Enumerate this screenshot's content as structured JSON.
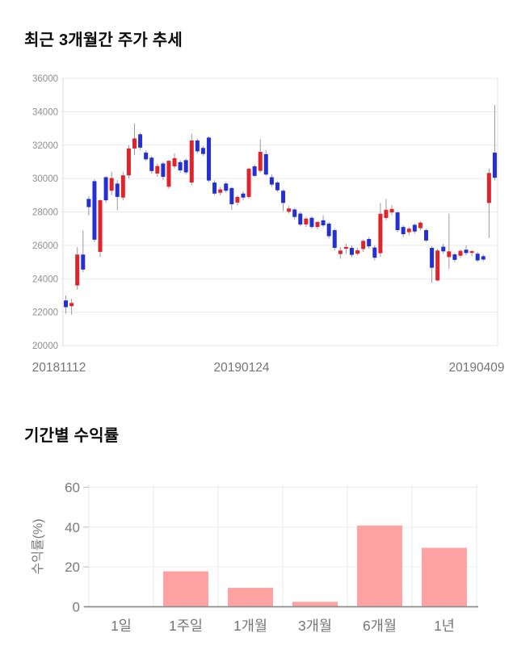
{
  "page": {
    "background": "#ffffff"
  },
  "chart_data": [
    {
      "type": "candlestick",
      "title": "최근 3개월간 주가 추세",
      "xlabel": "",
      "ylabel": "",
      "ylim": [
        20000,
        36000
      ],
      "y_ticks": [
        36000,
        34000,
        32000,
        30000,
        28000,
        26000,
        24000,
        22000,
        20000
      ],
      "x_axis_labels": [
        "20181112",
        "20190124",
        "20190409"
      ],
      "grid": "horizontal",
      "legend": "none",
      "colors": {
        "up": "#e1242b",
        "down": "#2530d2",
        "wick": "#999999",
        "grid": "#e9e9e9",
        "axis_text": "#8e8e8e",
        "x_text": "#757575"
      },
      "candles_ohlc": [
        [
          22700,
          23000,
          21900,
          22300
        ],
        [
          22360,
          22800,
          21850,
          22550
        ],
        [
          23600,
          25900,
          23350,
          25450
        ],
        [
          25450,
          26900,
          24400,
          24550
        ],
        [
          28780,
          28950,
          27800,
          28290
        ],
        [
          29840,
          29950,
          26200,
          26340
        ],
        [
          25610,
          28750,
          25300,
          28700
        ],
        [
          30080,
          30150,
          28550,
          28700
        ],
        [
          29270,
          30400,
          29000,
          30030
        ],
        [
          29700,
          29900,
          28100,
          28900
        ],
        [
          28860,
          30400,
          28700,
          30190
        ],
        [
          30190,
          32000,
          30000,
          31800
        ],
        [
          31800,
          33300,
          31400,
          32400
        ],
        [
          32650,
          32750,
          31700,
          31850
        ],
        [
          31550,
          31700,
          31050,
          31150
        ],
        [
          31250,
          31350,
          30300,
          30450
        ],
        [
          30300,
          30900,
          30100,
          30750
        ],
        [
          30900,
          31000,
          29900,
          30100
        ],
        [
          29510,
          31100,
          29400,
          31060
        ],
        [
          30730,
          31500,
          30600,
          31220
        ],
        [
          30980,
          31100,
          30350,
          30490
        ],
        [
          31100,
          31200,
          30250,
          30370
        ],
        [
          29760,
          32680,
          29600,
          32280
        ],
        [
          32280,
          32400,
          31500,
          31630
        ],
        [
          31830,
          31950,
          31350,
          31470
        ],
        [
          32450,
          32520,
          29800,
          29880
        ],
        [
          29760,
          29900,
          29000,
          29100
        ],
        [
          29150,
          29500,
          29000,
          29350
        ],
        [
          29700,
          29800,
          29150,
          29270
        ],
        [
          29430,
          29500,
          28130,
          28460
        ],
        [
          28560,
          29000,
          28400,
          28900
        ],
        [
          29100,
          29250,
          28700,
          28860
        ],
        [
          28900,
          30650,
          28800,
          30585
        ],
        [
          30730,
          30850,
          30100,
          30160
        ],
        [
          30460,
          32350,
          30350,
          31600
        ],
        [
          31460,
          31700,
          30150,
          30240
        ],
        [
          30080,
          30250,
          29500,
          29640
        ],
        [
          29760,
          29850,
          29200,
          29300
        ],
        [
          29270,
          29350,
          28050,
          28540
        ],
        [
          28010,
          28350,
          27900,
          28210
        ],
        [
          28150,
          28250,
          27550,
          27700
        ],
        [
          27900,
          28000,
          27150,
          27250
        ],
        [
          27250,
          27700,
          27100,
          27600
        ],
        [
          27650,
          27750,
          27000,
          27100
        ],
        [
          27100,
          27450,
          26950,
          27400
        ],
        [
          27500,
          27800,
          27100,
          27200
        ],
        [
          27300,
          27400,
          26400,
          26550
        ],
        [
          26910,
          27000,
          25700,
          25850
        ],
        [
          25480,
          25900,
          25200,
          25690
        ],
        [
          25800,
          26100,
          25500,
          25900
        ],
        [
          25850,
          26000,
          25300,
          25430
        ],
        [
          25500,
          25850,
          25400,
          25700
        ],
        [
          25780,
          26350,
          25600,
          26270
        ],
        [
          26380,
          26500,
          25800,
          25940
        ],
        [
          25870,
          26000,
          25100,
          25260
        ],
        [
          25530,
          28540,
          25300,
          27890
        ],
        [
          27640,
          28780,
          27500,
          28130
        ],
        [
          27970,
          28400,
          27800,
          28180
        ],
        [
          27970,
          28050,
          26800,
          26910
        ],
        [
          27100,
          27200,
          26500,
          26670
        ],
        [
          26790,
          27100,
          26600,
          27000
        ],
        [
          27230,
          27300,
          26700,
          26830
        ],
        [
          27030,
          27450,
          26900,
          27360
        ],
        [
          26910,
          27000,
          26200,
          26290
        ],
        [
          25850,
          25950,
          23740,
          24660
        ],
        [
          23900,
          25800,
          23850,
          25690
        ],
        [
          25920,
          26100,
          25500,
          25640
        ],
        [
          25300,
          27900,
          24600,
          25640
        ],
        [
          25460,
          25550,
          25000,
          25130
        ],
        [
          25380,
          25750,
          25250,
          25670
        ],
        [
          25740,
          26000,
          25400,
          25540
        ],
        [
          25550,
          25700,
          25350,
          25650
        ],
        [
          25500,
          25600,
          25000,
          25100
        ],
        [
          25350,
          25450,
          25050,
          25150
        ],
        [
          28540,
          30600,
          26440,
          30330
        ],
        [
          31550,
          34400,
          29900,
          30050
        ]
      ]
    },
    {
      "type": "bar",
      "title": "기간별 수익률",
      "xlabel": "",
      "ylabel": "수익률(%)",
      "ylim": [
        0,
        60
      ],
      "y_ticks": [
        60,
        40,
        20,
        0
      ],
      "categories": [
        "1일",
        "1주일",
        "1개월",
        "3개월",
        "6개월",
        "1년"
      ],
      "values": [
        0,
        17.8,
        9.5,
        2.5,
        40.8,
        29.6
      ],
      "grid": "both",
      "legend": "none",
      "bar_color": "#fda3a3",
      "colors": {
        "axis_line": "#8d8d8d",
        "grid": "#ececec",
        "axis_text": "#7a7a7a",
        "x_text": "#757575"
      }
    }
  ]
}
